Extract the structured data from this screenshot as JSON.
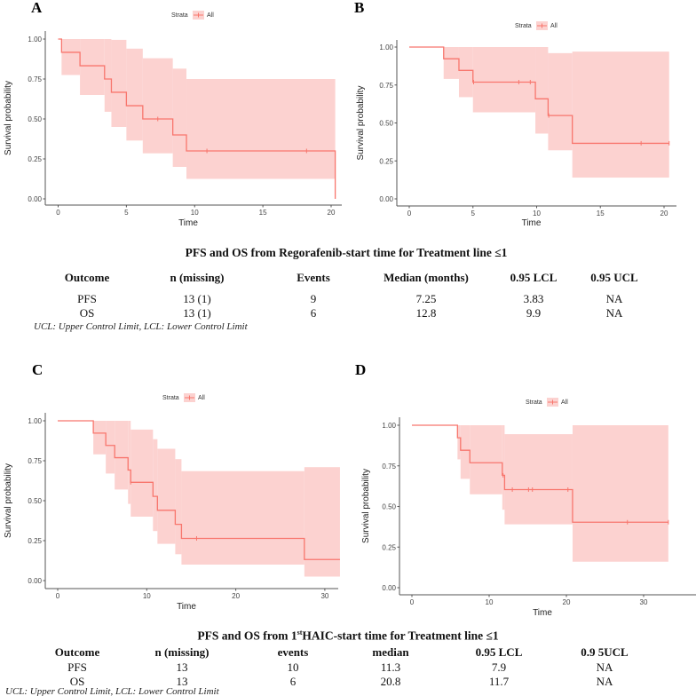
{
  "chart_data": [
    {
      "type": "line",
      "panel": "A",
      "xlabel": "Time",
      "ylabel": "Survival probability",
      "legend": {
        "title": "Strata",
        "label": "All",
        "placement": "top"
      },
      "xlim": [
        0,
        20.5
      ],
      "ylim": [
        0,
        1
      ],
      "x_ticks": [
        "0",
        "5",
        "10",
        "15",
        "20"
      ],
      "y_ticks": [
        "0.00",
        "0.25",
        "0.50",
        "0.75",
        "1.00"
      ],
      "grid": false,
      "color": "#f8766d",
      "times": [
        0,
        0.25,
        1.6,
        3.4,
        3.9,
        5.0,
        6.2,
        8.4,
        9.4,
        20.3
      ],
      "end": 20.3,
      "survival": [
        1.0,
        0.917,
        0.833,
        0.75,
        0.667,
        0.583,
        0.5,
        0.4,
        0.3,
        0.0
      ],
      "upper": [
        1.0,
        1.0,
        1.0,
        1.0,
        0.995,
        0.94,
        0.88,
        0.815,
        0.75,
        null
      ],
      "lower": [
        1.0,
        0.775,
        0.65,
        0.545,
        0.45,
        0.365,
        0.285,
        0.2,
        0.125,
        null
      ],
      "censored": [
        [
          7.3,
          0.5
        ],
        [
          10.9,
          0.3
        ],
        [
          18.2,
          0.3
        ]
      ]
    },
    {
      "type": "line",
      "panel": "B",
      "xlabel": "Time",
      "ylabel": "Survival probability",
      "legend": {
        "title": "Strata",
        "label": "All",
        "placement": "top"
      },
      "xlim": [
        0,
        20.5
      ],
      "ylim": [
        0,
        1
      ],
      "x_ticks": [
        "0",
        "5",
        "10",
        "15",
        "20"
      ],
      "y_ticks": [
        "0.00",
        "0.25",
        "0.50",
        "0.75",
        "1.00"
      ],
      "grid": false,
      "color": "#f8766d",
      "times": [
        0,
        2.7,
        3.9,
        5.0,
        9.9,
        10.9,
        12.8
      ],
      "end": 20.4,
      "survival": [
        1.0,
        0.923,
        0.846,
        0.769,
        0.659,
        0.549,
        0.366
      ],
      "upper": [
        1.0,
        1.0,
        1.0,
        1.0,
        1.0,
        0.96,
        0.97
      ],
      "lower": [
        1.0,
        0.79,
        0.67,
        0.57,
        0.43,
        0.32,
        0.14
      ],
      "censored": [
        [
          5.05,
          0.769
        ],
        [
          8.6,
          0.769
        ],
        [
          9.5,
          0.769
        ],
        [
          10.95,
          0.549
        ],
        [
          18.2,
          0.366
        ],
        [
          20.4,
          0.366
        ]
      ]
    },
    {
      "type": "line",
      "panel": "C",
      "xlabel": "Time",
      "ylabel": "Survival probability",
      "legend": {
        "title": "Strata",
        "label": "All",
        "placement": "top"
      },
      "xlim": [
        0,
        31.7
      ],
      "ylim": [
        0,
        1
      ],
      "x_ticks": [
        "0",
        "10",
        "20",
        "30"
      ],
      "y_ticks": [
        "0.00",
        "0.25",
        "0.50",
        "0.75",
        "1.00"
      ],
      "grid": false,
      "color": "#f8766d",
      "times": [
        0,
        4.0,
        5.4,
        6.4,
        7.9,
        8.2,
        10.7,
        11.2,
        13.2,
        13.9,
        27.7
      ],
      "end": 31.7,
      "survival": [
        1.0,
        0.923,
        0.846,
        0.769,
        0.692,
        0.615,
        0.527,
        0.44,
        0.352,
        0.264,
        0.132
      ],
      "upper": [
        1.0,
        1.0,
        1.0,
        1.0,
        1.0,
        0.945,
        0.885,
        0.825,
        0.76,
        0.685,
        0.71
      ],
      "lower": [
        1.0,
        0.79,
        0.67,
        0.57,
        0.48,
        0.4,
        0.31,
        0.23,
        0.165,
        0.1,
        0.025
      ],
      "censored": [
        [
          8.2,
          0.615
        ],
        [
          15.6,
          0.264
        ]
      ]
    },
    {
      "type": "line",
      "panel": "D",
      "xlabel": "Time",
      "ylabel": "Survival probability",
      "legend": {
        "title": "Strata",
        "label": "All",
        "placement": "top"
      },
      "xlim": [
        0,
        33.2
      ],
      "ylim": [
        0,
        1
      ],
      "x_ticks": [
        "0",
        "10",
        "20",
        "30"
      ],
      "y_ticks": [
        "0.00",
        "0.25",
        "0.50",
        "0.75",
        "1.00"
      ],
      "grid": false,
      "color": "#f8766d",
      "times": [
        0,
        5.9,
        6.3,
        7.5,
        11.7,
        12.0,
        20.8
      ],
      "end": 33.2,
      "survival": [
        1.0,
        0.923,
        0.846,
        0.769,
        0.692,
        0.604,
        0.403
      ],
      "upper": [
        1.0,
        1.0,
        1.0,
        1.0,
        1.0,
        0.945,
        1.0
      ],
      "lower": [
        1.0,
        0.79,
        0.67,
        0.575,
        0.48,
        0.39,
        0.16
      ],
      "censored": [
        [
          11.8,
          0.692
        ],
        [
          13.0,
          0.604
        ],
        [
          15.1,
          0.604
        ],
        [
          15.6,
          0.604
        ],
        [
          20.2,
          0.604
        ],
        [
          27.9,
          0.403
        ],
        [
          33.2,
          0.403
        ]
      ]
    }
  ],
  "table1": {
    "title": "PFS and OS from Regorafenib-start  time for Treatment  line ≤1",
    "headers": [
      "Outcome",
      "n (missing)",
      "Events",
      "Median  (months)",
      "0.95 LCL",
      "0.95 UCL"
    ],
    "rows": [
      [
        "PFS",
        "13 (1)",
        "9",
        "7.25",
        "3.83",
        "NA"
      ],
      [
        "OS",
        "13 (1)",
        "6",
        "12.8",
        "9.9",
        "NA"
      ]
    ],
    "footnote": "UCL: Upper Control Limit, LCL: Lower Control Limit"
  },
  "table2": {
    "title_pre": "PFS and OS from  1",
    "title_sup": "st",
    "title_post": "HAIC-start  time for Treatment  line ≤1",
    "headers": [
      "Outcome",
      "n (missing)",
      "events",
      "median",
      "0.95 LCL",
      "0.9 5UCL"
    ],
    "rows": [
      [
        "PFS",
        "13",
        "10",
        "11.3",
        "7.9",
        "NA"
      ],
      [
        "OS",
        "13",
        "6",
        "20.8",
        "11.7",
        "NA"
      ]
    ],
    "footnote": "UCL: Upper Control Limit, LCL: Lower Control Limit"
  }
}
